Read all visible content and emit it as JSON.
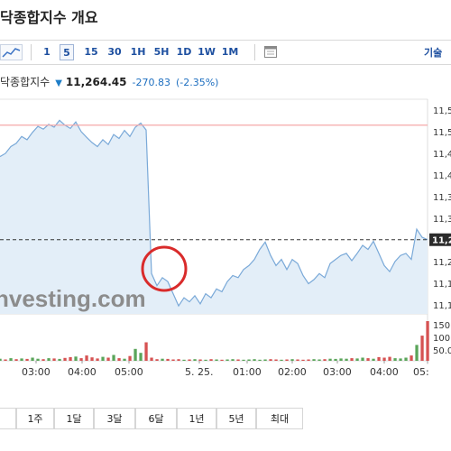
{
  "page": {
    "title": "닥종합지수 개요"
  },
  "toolbar": {
    "timeframes": [
      "1",
      "5",
      "15",
      "30",
      "1H",
      "5H",
      "1D",
      "1W",
      "1M"
    ],
    "active_index": 1,
    "technical_label": "기술"
  },
  "quote": {
    "name": "닥종합지수",
    "price": "11,264.45",
    "change": "-270.83",
    "change_pct": "(-2.35%)"
  },
  "colors": {
    "line": "#7aa9d8",
    "fill": "#e3eef8",
    "up_volume": "#5aa55a",
    "down_volume": "#d65252",
    "highlight_circle": "#d92b2b",
    "prev_high_line": "#f4a8a8"
  },
  "watermark": "nvesting.com",
  "chart_data": {
    "type": "area",
    "y_axis_ticks": [
      "11,5",
      "11,5",
      "11,4",
      "11,4",
      "11,3",
      "11,3",
      "11,2",
      "11,2",
      "11,1",
      "11,1"
    ],
    "current_value_label": "11,2",
    "volume_axis_ticks": [
      "150",
      "100",
      "50.0"
    ],
    "x_tick_labels": [
      "03:00",
      "04:00",
      "05:00",
      "5. 25.",
      "01:00",
      "02:00",
      "03:00",
      "04:00",
      "05:"
    ],
    "ylim": [
      11080,
      11590
    ],
    "current_value": 11264,
    "previous_high": 11548,
    "series": [
      {
        "values": [
          11470,
          11478,
          11495,
          11503,
          11520,
          11512,
          11530,
          11545,
          11538,
          11550,
          11543,
          11560,
          11548,
          11540,
          11556,
          11532,
          11518,
          11505,
          11495,
          11512,
          11500,
          11525,
          11515,
          11535,
          11520,
          11543,
          11553,
          11536,
          11180,
          11150,
          11170,
          11160,
          11130,
          11100,
          11120,
          11110,
          11125,
          11105,
          11130,
          11120,
          11142,
          11135,
          11160,
          11175,
          11170,
          11190,
          11200,
          11215,
          11240,
          11258,
          11225,
          11200,
          11215,
          11190,
          11215,
          11205,
          11175,
          11155,
          11165,
          11180,
          11170,
          11205,
          11215,
          11225,
          11230,
          11212,
          11230,
          11250,
          11240,
          11260,
          11230,
          11200,
          11185,
          11210,
          11225,
          11230,
          11215,
          11290,
          11270,
          11264
        ]
      }
    ],
    "volume": [
      8,
      5,
      10,
      6,
      9,
      7,
      12,
      8,
      6,
      10,
      9,
      7,
      11,
      14,
      16,
      10,
      20,
      13,
      9,
      15,
      12,
      22,
      10,
      8,
      18,
      45,
      30,
      70,
      12,
      6,
      8,
      7,
      5,
      6,
      4,
      5,
      6,
      5,
      4,
      6,
      5,
      4,
      5,
      6,
      5,
      4,
      5,
      6,
      4,
      5,
      6,
      5,
      4,
      5,
      6,
      5,
      4,
      5,
      6,
      5,
      6,
      8,
      7,
      9,
      8,
      10,
      9,
      12,
      10,
      8,
      14,
      12,
      15,
      10,
      9,
      12,
      20,
      60,
      95,
      150
    ],
    "volume_direction": [
      "u",
      "d",
      "u",
      "d",
      "u",
      "d",
      "u",
      "u",
      "d",
      "u",
      "d",
      "u",
      "d",
      "d",
      "u",
      "d",
      "d",
      "d",
      "d",
      "u",
      "d",
      "u",
      "d",
      "u",
      "d",
      "u",
      "u",
      "d",
      "d",
      "d",
      "u",
      "d",
      "d",
      "d",
      "u",
      "d",
      "u",
      "d",
      "u",
      "d",
      "u",
      "d",
      "u",
      "u",
      "d",
      "u",
      "u",
      "u",
      "u",
      "u",
      "d",
      "d",
      "u",
      "d",
      "u",
      "d",
      "d",
      "d",
      "u",
      "u",
      "d",
      "u",
      "u",
      "u",
      "u",
      "d",
      "u",
      "u",
      "d",
      "u",
      "d",
      "d",
      "d",
      "u",
      "u",
      "u",
      "d",
      "u",
      "d",
      "d"
    ]
  },
  "range_buttons": [
    "",
    "1주",
    "1달",
    "3달",
    "6달",
    "1년",
    "5년",
    "최대"
  ]
}
